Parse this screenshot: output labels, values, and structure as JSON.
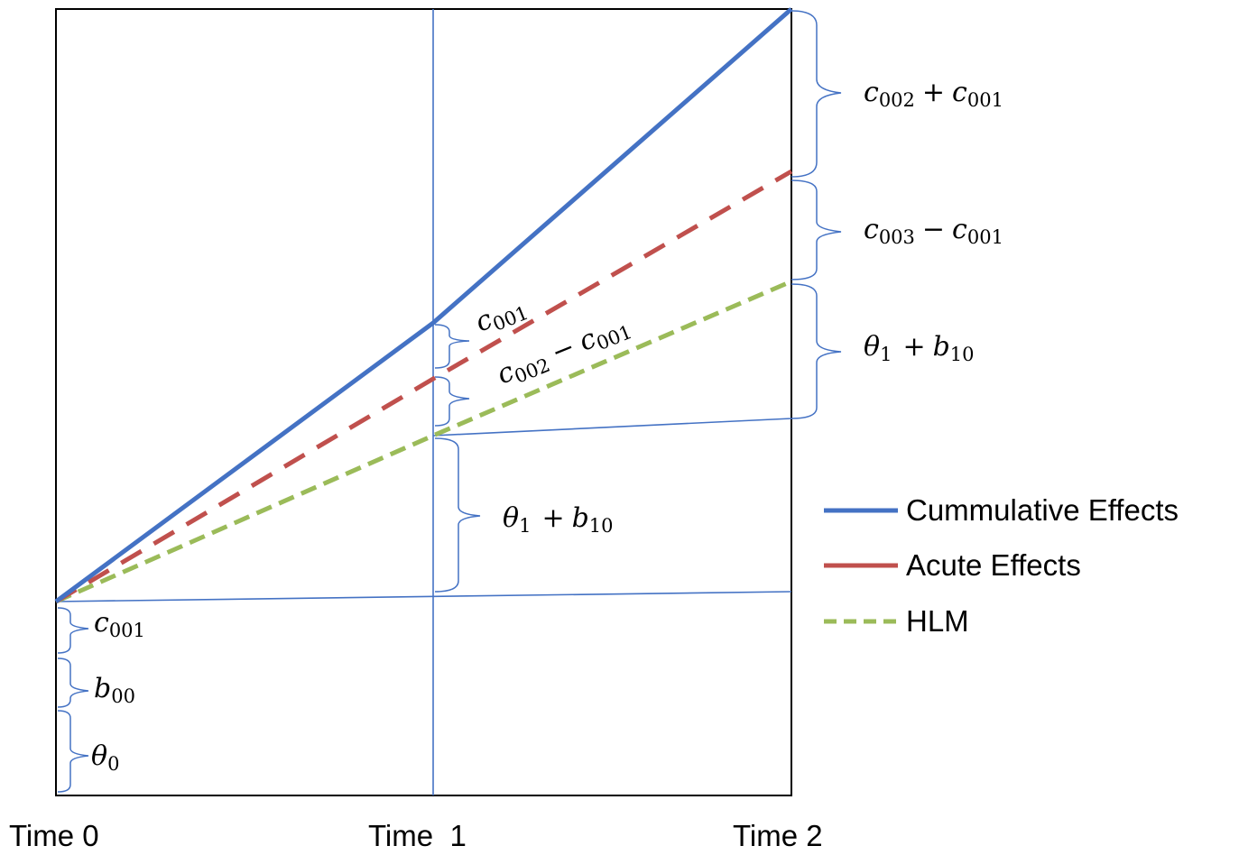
{
  "x_axis_labels": [
    "Time 0",
    "Time  1",
    "Time 2"
  ],
  "legend": [
    {
      "label": "Cummulative Effects",
      "color": "#4472c4",
      "style": "solid"
    },
    {
      "label": "Acute Effects",
      "color": "#c0504d",
      "style": "solid"
    },
    {
      "label": "HLM",
      "color": "#9bbb59",
      "style": "dashed"
    }
  ],
  "annotations": {
    "right_top": {
      "a": "c",
      "a_sub": "002",
      "op": "+",
      "b": "c",
      "b_sub": "001"
    },
    "right_mid": {
      "a": "c",
      "a_sub": "003",
      "op": "−",
      "b": "c",
      "b_sub": "001"
    },
    "right_bottom": {
      "a": "θ",
      "a_sub": "1",
      "op": "+",
      "b": "b",
      "b_sub": "10"
    },
    "time1_top": {
      "a": "c",
      "a_sub": "001"
    },
    "time1_mid": {
      "a": "c",
      "a_sub": "002",
      "op": "−",
      "b": "c",
      "b_sub": "001"
    },
    "time1_lower": {
      "a": "θ",
      "a_sub": "1",
      "op": "+",
      "b": "b",
      "b_sub": "10"
    },
    "left_1": {
      "a": "c",
      "a_sub": "001"
    },
    "left_2": {
      "a": "b",
      "a_sub": "00"
    },
    "left_3": {
      "a": "θ",
      "a_sub": "0"
    }
  },
  "colors": {
    "frame": "#000000",
    "reference_lines": "#4472c4",
    "cumulative": "#4472c4",
    "acute": "#c0504d",
    "hlm": "#9bbb59"
  }
}
